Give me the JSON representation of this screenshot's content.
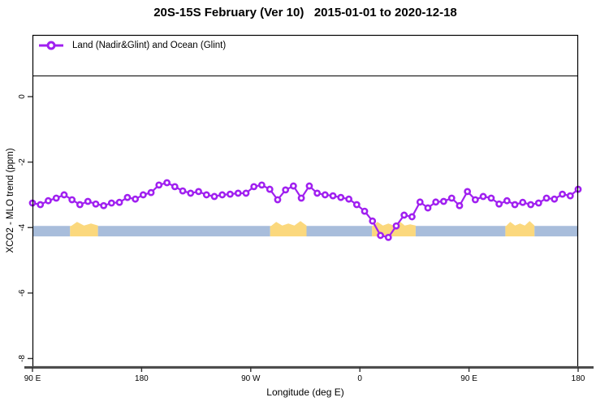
{
  "title": "20S-15S February (Ver 10)   2015-01-01 to 2020-12-18",
  "legend": {
    "label": "Land (Nadir&Glint) and Ocean (Glint)",
    "marker": "open-circle-on-line"
  },
  "colors": {
    "series": "#A020F0",
    "marker_fill": "#ffffff",
    "ocean_band": "#A8BDDB",
    "land_band": "#FBD87D",
    "box": "#000000",
    "bottom_axis": "#4d4d4d",
    "tick": "#333333"
  },
  "chart_data": {
    "type": "line",
    "title": "20S-15S February (Ver 10)   2015-01-01 to 2020-12-18",
    "xlabel": "Longitude (deg E)",
    "ylabel": "XCO2 - MLO trend (ppm)",
    "xlim": [
      90,
      540
    ],
    "ylim": [
      -8.35,
      1.9
    ],
    "grid": false,
    "legend_position": "top-left-full-width-box",
    "x_ticks": [
      {
        "value": 90,
        "label": "90 E"
      },
      {
        "value": 180,
        "label": "180"
      },
      {
        "value": 270,
        "label": "90 W"
      },
      {
        "value": 360,
        "label": "0"
      },
      {
        "value": 450,
        "label": "90 E"
      },
      {
        "value": 540,
        "label": "180"
      }
    ],
    "y_ticks": [
      {
        "value": 0,
        "label": "0"
      },
      {
        "value": -2,
        "label": "-2"
      },
      {
        "value": -4,
        "label": "-4"
      },
      {
        "value": -6,
        "label": "-6"
      },
      {
        "value": -8,
        "label": "-8"
      }
    ],
    "series": [
      {
        "name": "Land (Nadir&Glint) and Ocean (Glint)",
        "color": "#A020F0",
        "marker": "open-circle",
        "x": [
          90.0,
          96.5,
          103.0,
          109.6,
          116.1,
          122.6,
          129.1,
          135.7,
          142.2,
          148.7,
          155.2,
          161.7,
          168.3,
          174.8,
          181.3,
          187.8,
          194.3,
          200.9,
          207.4,
          213.9,
          220.4,
          227.0,
          233.5,
          240.0,
          246.5,
          253.0,
          259.6,
          266.1,
          272.6,
          279.1,
          285.7,
          292.2,
          298.7,
          305.2,
          311.7,
          318.3,
          324.8,
          331.3,
          337.8,
          344.3,
          350.9,
          357.4,
          363.9,
          370.4,
          377.0,
          383.5,
          390.0,
          396.5,
          403.0,
          409.6,
          416.1,
          422.6,
          429.1,
          435.7,
          442.2,
          448.7,
          455.2,
          461.7,
          468.3,
          474.8,
          481.3,
          487.8,
          494.3,
          500.9,
          507.4,
          513.9,
          520.4,
          527.0,
          533.5,
          540.0
        ],
        "values": [
          -3.25,
          -3.3,
          -3.18,
          -3.1,
          -3.0,
          -3.15,
          -3.3,
          -3.2,
          -3.28,
          -3.33,
          -3.25,
          -3.23,
          -3.08,
          -3.13,
          -3.0,
          -2.93,
          -2.7,
          -2.63,
          -2.75,
          -2.88,
          -2.95,
          -2.9,
          -3.0,
          -3.05,
          -3.0,
          -2.98,
          -2.95,
          -2.95,
          -2.75,
          -2.7,
          -2.83,
          -3.15,
          -2.85,
          -2.73,
          -3.1,
          -2.73,
          -2.95,
          -3.0,
          -3.03,
          -3.08,
          -3.13,
          -3.3,
          -3.5,
          -3.8,
          -4.24,
          -4.3,
          -3.95,
          -3.62,
          -3.67,
          -3.22,
          -3.4,
          -3.22,
          -3.2,
          -3.1,
          -3.33,
          -2.9,
          -3.15,
          -3.05,
          -3.1,
          -3.28,
          -3.18,
          -3.3,
          -3.23,
          -3.3,
          -3.25,
          -3.1,
          -3.13,
          -2.98,
          -3.03,
          -2.83
        ]
      }
    ],
    "surface_band": {
      "description": "land/ocean strip along longitude",
      "y_top": -3.95,
      "y_bottom": -4.27,
      "segments": [
        {
          "type": "ocean",
          "x0": 90,
          "x1": 121
        },
        {
          "type": "land",
          "x0": 121,
          "x1": 144
        },
        {
          "type": "ocean",
          "x0": 144,
          "x1": 286
        },
        {
          "type": "land",
          "x0": 286,
          "x1": 316
        },
        {
          "type": "ocean",
          "x0": 316,
          "x1": 370
        },
        {
          "type": "land",
          "x0": 370,
          "x1": 406
        },
        {
          "type": "ocean",
          "x0": 406,
          "x1": 480
        },
        {
          "type": "land",
          "x0": 480,
          "x1": 504
        },
        {
          "type": "ocean",
          "x0": 504,
          "x1": 540
        }
      ]
    }
  }
}
